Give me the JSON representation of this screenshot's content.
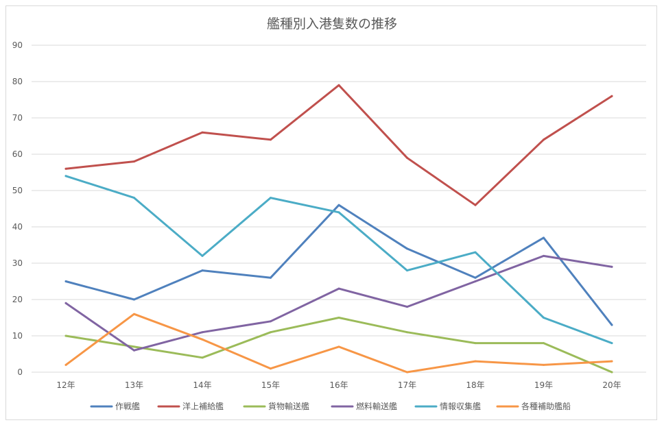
{
  "chart_data": {
    "type": "line",
    "title": "艦種別入港隻数の推移",
    "xlabel": "",
    "ylabel": "",
    "categories": [
      "12年",
      "13年",
      "14年",
      "15年",
      "16年",
      "17年",
      "18年",
      "19年",
      "20年"
    ],
    "ylim": [
      0,
      90
    ],
    "yticks": [
      "0",
      "10",
      "20",
      "30",
      "40",
      "50",
      "60",
      "70",
      "80",
      "90"
    ],
    "grid": true,
    "legend_position": "bottom",
    "series": [
      {
        "name": "作戦艦",
        "color": "#4F81BD",
        "values": [
          25,
          20,
          28,
          26,
          46,
          34,
          26,
          37,
          13
        ]
      },
      {
        "name": "洋上補給艦",
        "color": "#C0504D",
        "values": [
          56,
          58,
          66,
          64,
          79,
          59,
          46,
          64,
          76
        ]
      },
      {
        "name": "貨物輸送艦",
        "color": "#9BBB59",
        "values": [
          10,
          7,
          4,
          11,
          15,
          11,
          8,
          8,
          0
        ]
      },
      {
        "name": "燃料輸送艦",
        "color": "#8064A2",
        "values": [
          19,
          6,
          11,
          14,
          23,
          18,
          25,
          32,
          29
        ]
      },
      {
        "name": "情報収集艦",
        "color": "#4BACC6",
        "values": [
          54,
          48,
          32,
          48,
          44,
          28,
          33,
          15,
          8
        ]
      },
      {
        "name": "各種補助艦船",
        "color": "#F79646",
        "values": [
          2,
          16,
          9,
          1,
          7,
          0,
          3,
          2,
          3
        ]
      }
    ]
  }
}
